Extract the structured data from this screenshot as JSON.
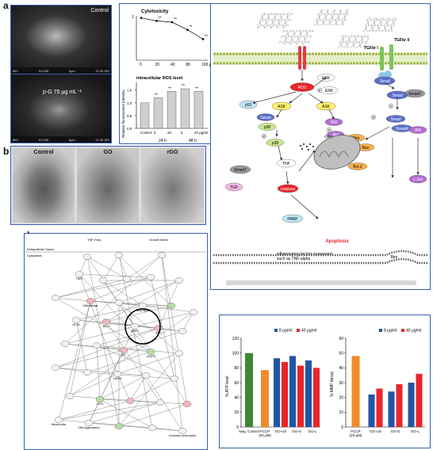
{
  "panels": {
    "a": "a",
    "b": "b",
    "c": "c",
    "d": "d"
  },
  "panel_a": {
    "top_label": "Control",
    "top_bar": [
      "8kV",
      "X4,000",
      "5μm",
      "10 30 SEI"
    ],
    "bottom_label": "p-G 75 μg mL⁻¹",
    "bottom_bar": [
      "8kV",
      "X3,300",
      "5μm",
      "10 30 SEI"
    ]
  },
  "panel_b": {
    "labels": [
      "Control",
      "GO",
      "rGO"
    ]
  },
  "panel_c": {
    "top": {
      "title": "Cytotoxicity",
      "x_ticks": [
        "0",
        "20",
        "40",
        "80",
        "100 μg/ml"
      ],
      "y_top": "1",
      "sig": "**"
    },
    "bottom": {
      "title": "intracellular ROS level",
      "ylabel": "Relative fluorescence intensity",
      "y_ticks": [
        "0.0",
        "0.5",
        "1.0",
        "1.5"
      ],
      "x_ticks": [
        "Control",
        "5",
        "20",
        "5",
        "20 μg/ml"
      ],
      "groups": [
        "24 h",
        "48 h"
      ],
      "sig": "**"
    }
  },
  "chart_data": [
    {
      "type": "line",
      "title": "Cytotoxicity",
      "x": [
        0,
        20,
        40,
        80,
        100
      ],
      "y": [
        1.0,
        0.93,
        0.9,
        0.72,
        0.5
      ],
      "ylim": [
        0,
        1.05
      ]
    },
    {
      "type": "bar",
      "title": "intracellular ROS level",
      "ylabel": "Relative fluorescence intensity",
      "categories": [
        "Control",
        "5",
        "20",
        "5",
        "20"
      ],
      "values": [
        1.0,
        1.2,
        1.45,
        1.55,
        1.45
      ],
      "ylim": [
        0,
        1.8
      ]
    },
    {
      "type": "bar",
      "ylabel": "% ATP level",
      "categories": [
        "Neg. Control",
        "FCCP (20 μM)",
        "GO-US",
        "GO-S",
        "GO-L"
      ],
      "series": [
        {
          "name": "8 μg/ml",
          "values": [
            null,
            null,
            93,
            96,
            90
          ]
        },
        {
          "name": "40 μg/ml",
          "values": [
            null,
            null,
            88,
            83,
            80
          ]
        }
      ],
      "single": [
        100,
        77
      ],
      "ylim": [
        0,
        120
      ],
      "y_ticks": [
        0,
        20,
        40,
        60,
        80,
        100,
        120
      ]
    },
    {
      "type": "bar",
      "ylabel": "% MMP decay",
      "categories": [
        "FCCP (20 μM)",
        "GO-US",
        "GO-S",
        "GO-L"
      ],
      "series": [
        {
          "name": "8 μg/ml",
          "values": [
            null,
            22,
            24,
            30
          ]
        },
        {
          "name": "40 μg/ml",
          "values": [
            null,
            26,
            29,
            36
          ]
        }
      ],
      "single": [
        48
      ],
      "ylim": [
        0,
        60
      ],
      "y_ticks": [
        0,
        10,
        20,
        30,
        40,
        50,
        60
      ]
    }
  ],
  "pathway": {
    "receptors": [
      "TGFbr I",
      "TGFbr II"
    ],
    "nodes": {
      "ros": "ROS",
      "erk1": "ERK",
      "erk2": "ERK",
      "smad2": "Smad",
      "smad7r": "Smad7",
      "smad3": "Smad",
      "p53": "p53",
      "ask1": "ASK",
      "ask2": "ASK",
      "smad_l": "Smad",
      "p38a": "p38",
      "p38b": "p38",
      "jnk1": "JNK",
      "jnk2": "JNK",
      "smad4": "Smad4",
      "smad_c": "Smad",
      "jnk3": "JNK",
      "tnf": "TNF",
      "smad7l": "Smad7",
      "tgf": "TGF",
      "caspase": "caspase",
      "cytc": "cyt c",
      "bim": "Bim",
      "bax": "Bax",
      "bcl2": "Bcl-2",
      "parp": "PARP",
      "cjun": "c-Jun",
      "apoptosis": "Apoptosis",
      "bim2": "Bim"
    },
    "p_label": "P",
    "inflammation": "inflammatory factors expression,\nsuch as TNF-alpha"
  },
  "ipa": {
    "extracellular": "Extracellular Space",
    "cytoplasm": "Cytoplasm",
    "top_labels": [
      "TNF-FasL",
      "Growth factor"
    ],
    "node_labels": [
      "TNFR",
      "DNA damage",
      "NF-κB",
      "BCL2",
      "BAX",
      "BID",
      "CASP9",
      "CASP3",
      "APAF1",
      "CYCS",
      "Mitochondria",
      "DNA fragmentation",
      "Chromatin condensation",
      "DNA repair"
    ]
  },
  "legend": {
    "s1": "8 μg/ml",
    "s2": "40 μg/ml"
  },
  "colors": {
    "blue": "#2255a4",
    "red": "#e8262b",
    "green": "#3a8a2e",
    "orange": "#f28a2b",
    "frame": "#3a5fb0"
  }
}
